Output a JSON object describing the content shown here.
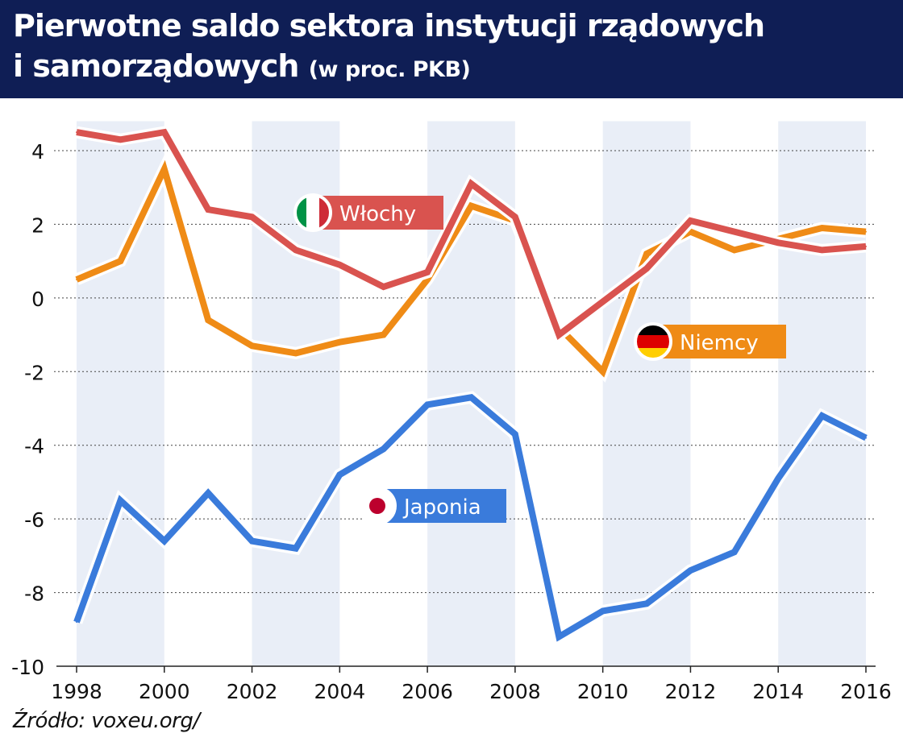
{
  "header": {
    "title_line1": "Pierwotne saldo sektora instytucji rządowych",
    "title_line2": "i samorządowych",
    "title_unit": "(w proc. PKB)"
  },
  "source": "Źródło: voxeu.org/",
  "colors": {
    "header_bg": "#0f1e55",
    "italy": "#d9534f",
    "germany": "#ef8b16",
    "japan": "#3a7bdb",
    "band": "#e9eef7"
  },
  "chart_data": {
    "type": "line",
    "x": [
      1998,
      1999,
      2000,
      2001,
      2002,
      2003,
      2004,
      2005,
      2006,
      2007,
      2008,
      2009,
      2010,
      2011,
      2012,
      2013,
      2014,
      2015,
      2016
    ],
    "xlim": [
      1998,
      2016
    ],
    "ylim": [
      -10,
      4.8
    ],
    "x_ticks": [
      "1998",
      "2000",
      "2002",
      "2004",
      "2006",
      "2008",
      "2010",
      "2012",
      "2014",
      "2016"
    ],
    "y_ticks": [
      "4",
      "2",
      "0",
      "-2",
      "-4",
      "-6",
      "-8",
      "-10"
    ],
    "grid": "horizontal dotted",
    "series": [
      {
        "name": "Włochy",
        "color": "#d9534f",
        "flag": "italy",
        "values": [
          4.5,
          4.3,
          4.5,
          2.4,
          2.2,
          1.3,
          0.9,
          0.3,
          0.7,
          3.1,
          2.2,
          -1.0,
          -0.1,
          0.8,
          2.1,
          1.8,
          1.5,
          1.3,
          1.4
        ]
      },
      {
        "name": "Niemcy",
        "color": "#ef8b16",
        "flag": "germany",
        "values": [
          0.5,
          1.0,
          3.5,
          -0.6,
          -1.3,
          -1.5,
          -1.2,
          -1.0,
          0.5,
          2.5,
          2.1,
          -0.8,
          -2.0,
          1.2,
          1.8,
          1.3,
          1.6,
          1.9,
          1.8
        ]
      },
      {
        "name": "Japonia",
        "color": "#3a7bdb",
        "flag": "japan",
        "values": [
          -8.8,
          -5.5,
          -6.6,
          -5.3,
          -6.6,
          -6.8,
          -4.8,
          -4.1,
          -2.9,
          -2.7,
          -3.7,
          -9.2,
          -8.5,
          -8.3,
          -7.4,
          -6.9,
          -4.9,
          -3.2,
          -3.8
        ]
      }
    ]
  }
}
